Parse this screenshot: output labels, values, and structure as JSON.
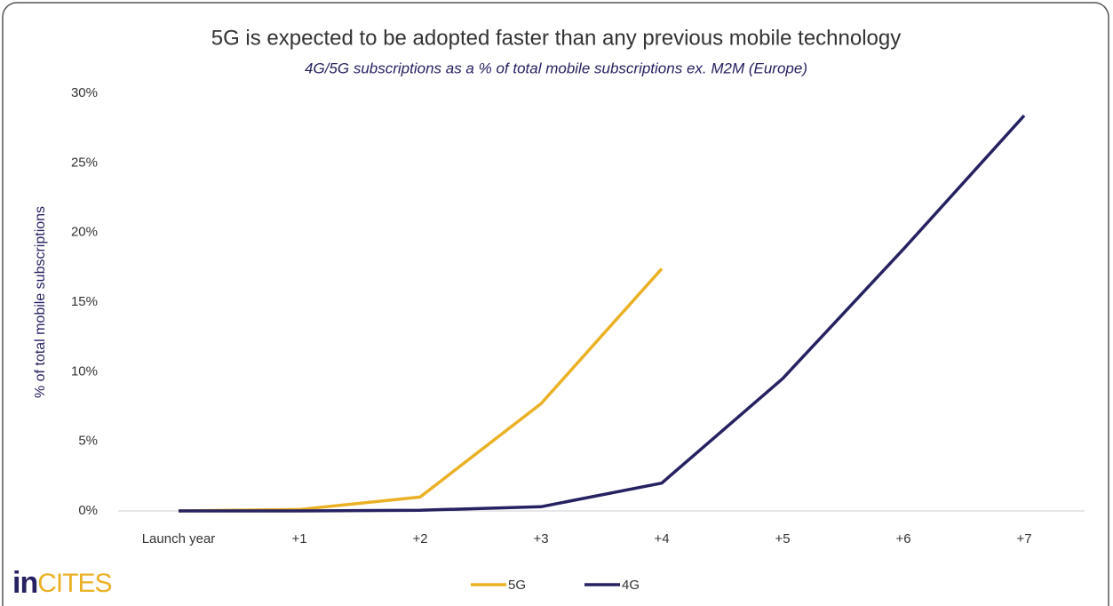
{
  "chart_data": {
    "type": "line",
    "title": "5G is expected to be adopted faster than any previous mobile technology",
    "subtitle": "4G/5G subscriptions as a % of total mobile subscriptions ex. M2M (Europe)",
    "y_label": "% of total mobile subscriptions",
    "logo": [
      "in",
      "CITES"
    ],
    "categories": [
      "Launch year",
      "+1",
      "+2",
      "+3",
      "+4",
      "+5",
      "+6",
      "+7"
    ],
    "series": [
      {
        "name": "5G",
        "color": "#eab125",
        "values": [
          0,
          0.1,
          1.0,
          7.7,
          17.4,
          null,
          null,
          null
        ]
      },
      {
        "name": "4G",
        "color": "#262262",
        "values": [
          0,
          0,
          0.05,
          0.3,
          2.0,
          9.5,
          18.8,
          28.4
        ]
      }
    ],
    "ylim": [
      0,
      30
    ],
    "yticks": [
      {
        "value": 0,
        "label": "0%"
      },
      {
        "value": 5,
        "label": "5%"
      },
      {
        "value": 10,
        "label": "10%"
      },
      {
        "value": 15,
        "label": "15%"
      },
      {
        "value": 20,
        "label": "20%"
      },
      {
        "value": 25,
        "label": "25%"
      },
      {
        "value": 30,
        "label": "30%"
      }
    ],
    "grid": false,
    "legend": "bottom"
  }
}
